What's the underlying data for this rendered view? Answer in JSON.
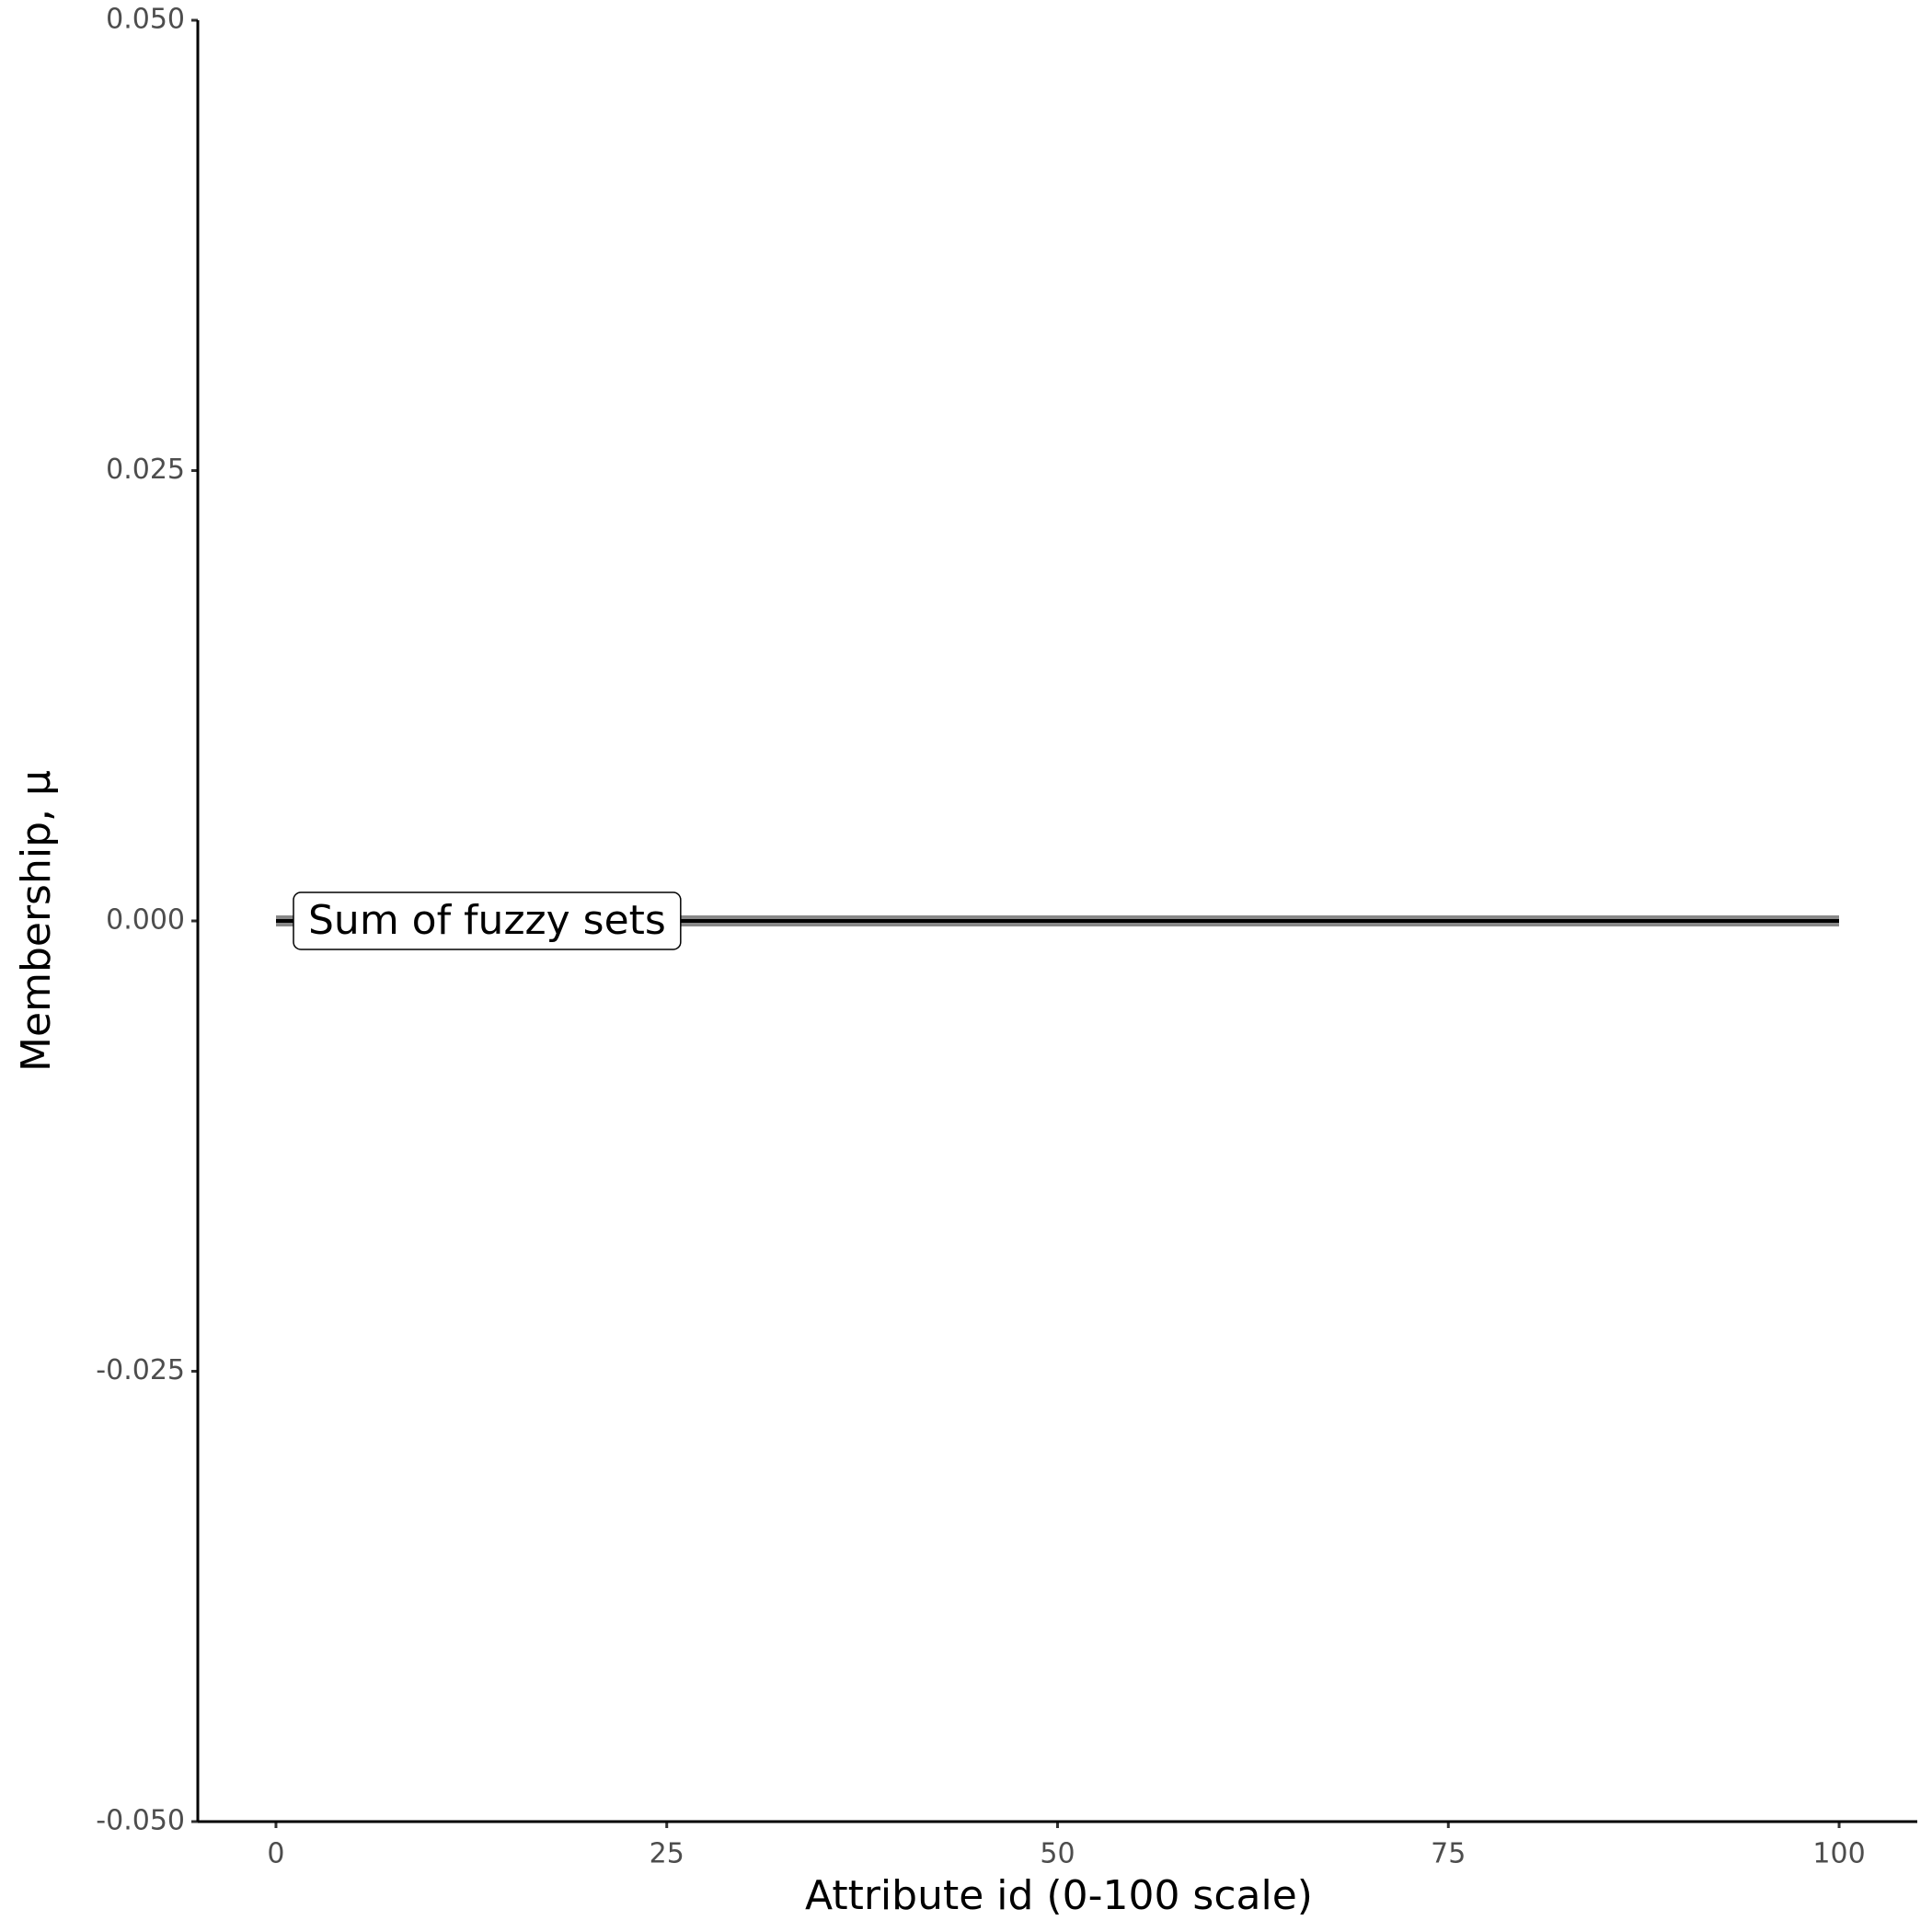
{
  "chart_data": {
    "type": "line",
    "x_label": "Attribute id (0-100 scale)",
    "y_label": "Membership, μ",
    "annotation": "Sum of fuzzy sets",
    "x": [
      0,
      100
    ],
    "series": [
      {
        "color": "#888888",
        "values": [
          0,
          0
        ]
      },
      {
        "color": "#000000",
        "values": [
          0,
          0
        ]
      }
    ],
    "xlim": [
      -5,
      105
    ],
    "xticks": [
      0,
      25,
      50,
      75,
      100
    ],
    "ylim": [
      -0.05,
      0.05
    ],
    "yticks": [
      {
        "value": -0.05,
        "label": "-0.050"
      },
      {
        "value": -0.025,
        "label": "-0.025"
      },
      {
        "value": 0,
        "label": "0.000"
      },
      {
        "value": 0.025,
        "label": "0.025"
      },
      {
        "value": 0.05,
        "label": "0.050"
      }
    ],
    "grid": false
  }
}
